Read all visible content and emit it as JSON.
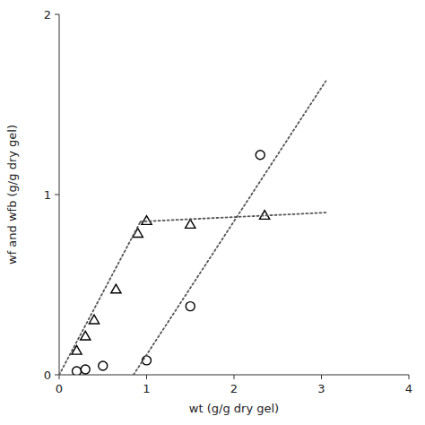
{
  "chart_data": {
    "type": "scatter",
    "xlabel": "wt (g/g dry gel)",
    "ylabel": "wf and wfb (g/g dry gel)",
    "xlim": [
      0,
      4
    ],
    "ylim": [
      0,
      2.0
    ],
    "xticks": [
      0,
      1,
      2,
      3,
      4
    ],
    "yticks": [
      0,
      1,
      2
    ],
    "grid": false,
    "series": [
      {
        "type": "scatter",
        "marker": "triangle",
        "color": "#000000",
        "x": [
          0.2,
          0.3,
          0.4,
          0.65,
          0.9,
          1.0,
          1.5,
          2.35
        ],
        "values": [
          0.13,
          0.21,
          0.3,
          0.47,
          0.78,
          0.85,
          0.83,
          0.88
        ]
      },
      {
        "type": "scatter",
        "marker": "circle",
        "color": "#000000",
        "x": [
          0.2,
          0.3,
          0.5,
          1.0,
          1.5,
          2.3
        ],
        "values": [
          0.02,
          0.03,
          0.05,
          0.08,
          0.38,
          1.22
        ]
      },
      {
        "type": "line",
        "line_style": "dotted",
        "color": "#555555",
        "x": [
          0.0,
          0.93
        ],
        "values": [
          0.0,
          0.85
        ]
      },
      {
        "type": "line",
        "line_style": "dotted",
        "color": "#555555",
        "x": [
          0.93,
          3.05
        ],
        "values": [
          0.85,
          0.9
        ]
      },
      {
        "type": "line",
        "line_style": "dotted",
        "color": "#555555",
        "x": [
          0.85,
          3.05
        ],
        "values": [
          0.0,
          1.63
        ]
      }
    ]
  }
}
